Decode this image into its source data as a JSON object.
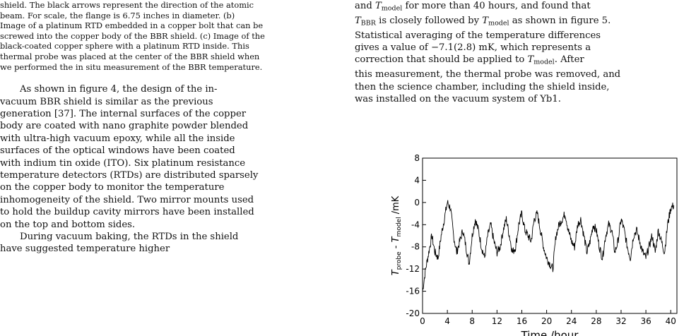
{
  "left": {
    "caption_lines": [
      "shield. The black arrows represent the direction of the atomic",
      "beam.  For scale, the flange is 6.75 inches in diameter.  (b)",
      "Image of a platinum RTD embedded in a copper bolt that can be",
      "screwed into the copper body of the BBR shield. (c) Image of the",
      "black-coated copper sphere with a platinum RTD inside. This",
      "thermal probe was placed at the center of the BBR shield when",
      "we performed the in situ measurement of the BBR temperature."
    ],
    "para1": [
      "As shown in figure 4, the design of the in-",
      "vacuum BBR shield is similar as the previous",
      "generation [37]. The internal surfaces of the copper",
      "body are coated with nano graphite powder blended",
      "with ultra-high vacuum epoxy, while all the inside",
      "surfaces of the optical windows have been coated",
      "with indium tin oxide (ITO). Six platinum resistance",
      "temperature detectors (RTDs) are distributed sparsely",
      "on the copper body to monitor the temperature",
      "inhomogeneity of the shield. Two mirror mounts used",
      "to hold the buildup cavity mirrors have been installed",
      "on the top and bottom sides."
    ],
    "para2_first": "During vacuum baking, the RTDs in the shield",
    "para2_second": "have suggested temperature higher"
  },
  "right": {
    "line1_pre": "and ",
    "line1_T": "T",
    "line1_sub": "model",
    "line1_post": " for more than 40 hours, and found that",
    "line2_T1": "T",
    "line2_sub1": "BBR",
    "line2_mid": " is closely followed by ",
    "line2_T2": "T",
    "line2_sub2": "model",
    "line2_post": " as shown in figure 5.",
    "line3": "Statistical averaging of the temperature differences",
    "line4": "gives a value of  −7.1(2.8) mK,  which represents a",
    "line5_pre": "correction that should be applied to ",
    "line5_T": "T",
    "line5_sub": "model",
    "line5_post": ".   After",
    "line6": "this measurement, the thermal probe was removed, and",
    "line7": "then the science chamber, including the shield inside,",
    "line8": "was installed on the vacuum system of Yb1."
  },
  "chart_data": {
    "type": "line",
    "xlabel": "Time /hour",
    "ylabel_T1": "T",
    "ylabel_sub1": "probe",
    "ylabel_mid": " - ",
    "ylabel_T2": "T",
    "ylabel_sub2": "model",
    "ylabel_unit": " /mK",
    "xlim": [
      0,
      41
    ],
    "ylim": [
      -20,
      8
    ],
    "xticks": [
      0,
      4,
      8,
      12,
      16,
      20,
      24,
      28,
      32,
      36,
      40
    ],
    "yticks": [
      8,
      4,
      0,
      -4,
      -8,
      -12,
      -16,
      -20
    ],
    "x": [
      0,
      0.5,
      1,
      1.5,
      2,
      2.5,
      3,
      3.5,
      4,
      4.5,
      5,
      5.5,
      6,
      6.5,
      7,
      7.5,
      8,
      8.5,
      9,
      9.5,
      10,
      10.5,
      11,
      11.5,
      12,
      12.5,
      13,
      13.5,
      14,
      14.5,
      15,
      15.5,
      16,
      16.5,
      17,
      17.5,
      18,
      18.5,
      19,
      19.5,
      20,
      20.5,
      21,
      21.5,
      22,
      22.5,
      23,
      23.5,
      24,
      24.5,
      25,
      25.5,
      26,
      26.5,
      27,
      27.5,
      28,
      28.5,
      29,
      29.5,
      30,
      30.5,
      31,
      31.5,
      32,
      32.5,
      33,
      33.5,
      34,
      34.5,
      35,
      35.5,
      36,
      36.5,
      37,
      37.5,
      38,
      38.5,
      39,
      39.5,
      40,
      40.5
    ],
    "values": [
      -16,
      -12,
      -9,
      -6,
      -9,
      -10,
      -6,
      -3,
      0,
      -1,
      -6,
      -9,
      -7,
      -5,
      -8,
      -11,
      -6,
      -3,
      -5,
      -8,
      -10,
      -6,
      -4,
      -7,
      -9,
      -8,
      -5,
      -3,
      -6,
      -9,
      -8,
      -4,
      -2,
      -5,
      -6,
      -7,
      -3,
      -2,
      -5,
      -8,
      -10,
      -11,
      -12,
      -6,
      -4,
      -3,
      -2,
      -5,
      -7,
      -8,
      -4,
      -3,
      -6,
      -9,
      -7,
      -4,
      -5,
      -8,
      -10,
      -6,
      -4,
      -5,
      -9,
      -7,
      -3,
      -5,
      -8,
      -10,
      -6,
      -5,
      -7,
      -9,
      -10,
      -8,
      -6,
      -9,
      -5,
      -7,
      -9,
      -4,
      -1,
      -0.5
    ]
  }
}
